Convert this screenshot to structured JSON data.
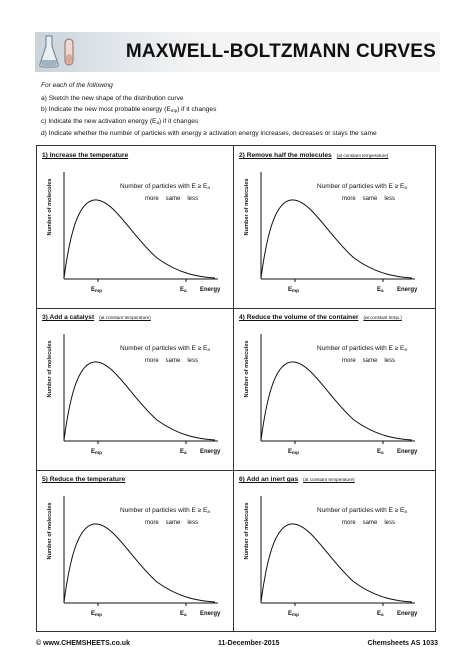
{
  "header": {
    "title": "MAXWELL-BOLTZMANN CURVES"
  },
  "instructions": {
    "lead": "For each of the following",
    "items": [
      "a) Sketch the new shape of the distribution curve",
      "b) Indicate the new most probable energy (E",
      "c) Indicate the new activation energy (E",
      "d) Indicate whether the number of particles with energy ≥ activation energy increases, decreases or stays the same"
    ],
    "b_sub": "mp",
    "b_tail": ") if it changes",
    "c_sub": "a",
    "c_tail": ") if it changes"
  },
  "panel_common": {
    "y_label": "Number of molecules",
    "question": "Number of particles with E ≥ E",
    "question_sub": "a",
    "choices": [
      "more",
      "same",
      "less"
    ],
    "emp": "E",
    "emp_sub": "mp",
    "ea": "E",
    "ea_sub": "a",
    "energy": "Energy"
  },
  "panels": [
    {
      "title": "1) Increase the temperature",
      "note": ""
    },
    {
      "title": "2) Remove half the molecules",
      "note": "(at constant temperature)"
    },
    {
      "title": "3) Add a catalyst",
      "note": "(at constant temperature)"
    },
    {
      "title": "4) Reduce the volume of the container",
      "note": "(at constant temp.)"
    },
    {
      "title": "5) Reduce the temperature",
      "note": ""
    },
    {
      "title": "6) Add an inert gas",
      "note": "(at constant temperature)"
    }
  ],
  "footer": {
    "left": "© www.CHEMSHEETS.co.uk",
    "center": "11-December-2015",
    "right": "Chemsheets AS 1033"
  }
}
